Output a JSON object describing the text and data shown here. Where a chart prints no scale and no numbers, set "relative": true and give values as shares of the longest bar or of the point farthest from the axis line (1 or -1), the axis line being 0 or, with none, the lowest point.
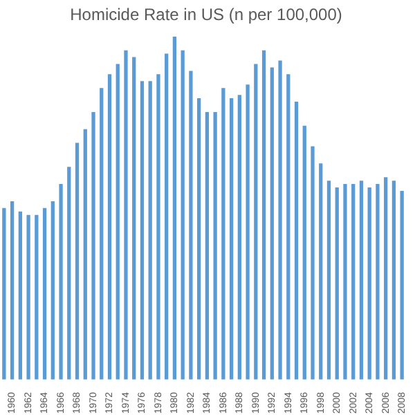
{
  "chart_data": {
    "type": "bar",
    "title": "Homicide Rate in US (n per 100,000)",
    "relative": true,
    "categories": [
      null,
      "1960",
      null,
      "1962",
      null,
      "1964",
      null,
      "1966",
      null,
      "1968",
      null,
      "1970",
      null,
      "1972",
      null,
      "1974",
      null,
      "1976",
      null,
      "1978",
      null,
      "1980",
      null,
      "1982",
      null,
      "1984",
      null,
      "1986",
      null,
      "1988",
      null,
      "1990",
      null,
      "1992",
      null,
      "1994",
      null,
      "1996",
      null,
      "1998",
      null,
      "2000",
      null,
      "2002",
      null,
      "2004",
      null,
      "2006",
      null,
      "2008"
    ],
    "values": [
      0.5,
      0.52,
      0.49,
      0.48,
      0.48,
      0.5,
      0.52,
      0.57,
      0.62,
      0.69,
      0.73,
      0.78,
      0.85,
      0.89,
      0.92,
      0.96,
      0.94,
      0.87,
      0.87,
      0.89,
      0.95,
      1,
      0.96,
      0.9,
      0.82,
      0.78,
      0.78,
      0.85,
      0.82,
      0.83,
      0.86,
      0.92,
      0.96,
      0.91,
      0.93,
      0.89,
      0.81,
      0.74,
      0.68,
      0.63,
      0.58,
      0.56,
      0.57,
      0.57,
      0.58,
      0.56,
      0.57,
      0.59,
      0.58,
      0.55
    ],
    "color": "#5b9bd5",
    "legend": false
  }
}
